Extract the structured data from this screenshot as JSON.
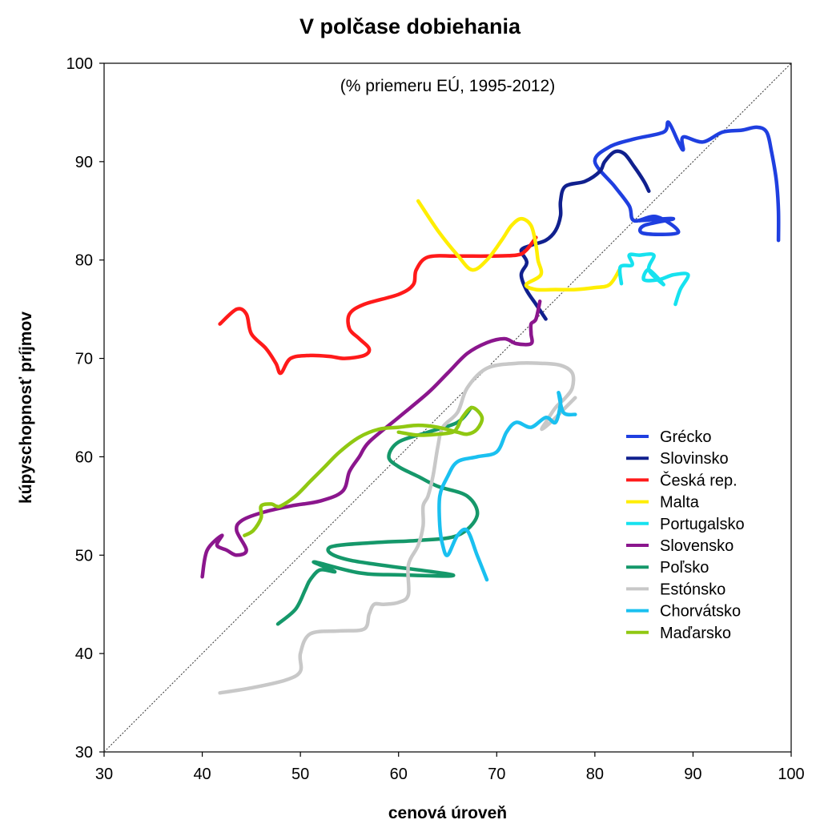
{
  "chart_data": {
    "type": "line",
    "title": "V polčase dobiehania",
    "subtitle": "(% priemeru EÚ, 1995-2012)",
    "xlabel": "cenová úroveň",
    "ylabel": "kúpyschopnosť príjmov",
    "xlim": [
      30,
      100
    ],
    "ylim": [
      30,
      100
    ],
    "xticks": [
      30,
      40,
      50,
      60,
      70,
      80,
      90,
      100
    ],
    "yticks": [
      30,
      40,
      50,
      60,
      70,
      80,
      90,
      100
    ],
    "grid": false,
    "reference_line": "diagonal y = x (dotted)",
    "legend_position": "right",
    "series": [
      {
        "name": "Grécko",
        "color": "#1f3fe0",
        "points": [
          [
            84.5,
            84
          ],
          [
            88,
            84.2
          ],
          [
            85,
            83.5
          ],
          [
            85,
            82.7
          ],
          [
            88.5,
            82.8
          ],
          [
            86.3,
            84.4
          ],
          [
            84,
            84
          ],
          [
            83.5,
            85.5
          ],
          [
            82,
            87.5
          ],
          [
            80,
            90
          ],
          [
            81.5,
            91.5
          ],
          [
            84,
            92.3
          ],
          [
            87,
            93
          ],
          [
            87.5,
            94
          ],
          [
            88.5,
            92
          ],
          [
            89,
            91.2
          ],
          [
            89,
            92.5
          ],
          [
            91,
            92
          ],
          [
            93,
            93
          ],
          [
            95,
            93.2
          ],
          [
            96.5,
            93.5
          ],
          [
            97.5,
            93
          ],
          [
            98,
            91
          ],
          [
            98.5,
            88
          ],
          [
            98.7,
            85
          ],
          [
            98.7,
            82
          ]
        ]
      },
      {
        "name": "Slovinsko",
        "color": "#10208e",
        "points": [
          [
            75,
            74
          ],
          [
            74,
            75.5
          ],
          [
            73,
            77
          ],
          [
            72.5,
            78.5
          ],
          [
            73,
            79.5
          ],
          [
            73,
            80
          ],
          [
            72.5,
            81
          ],
          [
            73.5,
            81.5
          ],
          [
            75,
            82
          ],
          [
            76,
            83
          ],
          [
            76.5,
            84.5
          ],
          [
            76.5,
            86
          ],
          [
            77,
            87.5
          ],
          [
            79,
            88
          ],
          [
            80.5,
            89
          ],
          [
            81,
            90
          ],
          [
            82,
            91
          ],
          [
            83,
            90.8
          ],
          [
            84,
            89.5
          ],
          [
            85,
            88
          ],
          [
            85.5,
            87
          ]
        ]
      },
      {
        "name": "Česká rep.",
        "color": "#ff1a1a",
        "points": [
          [
            41.8,
            73.5
          ],
          [
            43.5,
            75
          ],
          [
            44.5,
            74.5
          ],
          [
            45,
            72.5
          ],
          [
            46.5,
            71
          ],
          [
            47.5,
            69.5
          ],
          [
            48,
            68.5
          ],
          [
            49,
            70
          ],
          [
            51,
            70.3
          ],
          [
            53,
            70.2
          ],
          [
            54.5,
            70
          ],
          [
            56.5,
            70.3
          ],
          [
            57,
            71
          ],
          [
            56,
            72
          ],
          [
            55,
            73
          ],
          [
            55,
            74.5
          ],
          [
            56.5,
            75.5
          ],
          [
            60,
            76.5
          ],
          [
            61.5,
            77.5
          ],
          [
            61.8,
            79
          ],
          [
            63,
            80.3
          ],
          [
            66,
            80.4
          ],
          [
            69,
            80.4
          ],
          [
            72,
            80.5
          ],
          [
            73,
            81
          ],
          [
            74,
            82.3
          ]
        ]
      },
      {
        "name": "Malta",
        "color": "#ffee00",
        "points": [
          [
            62,
            86
          ],
          [
            64,
            83
          ],
          [
            66,
            80.5
          ],
          [
            67.5,
            79
          ],
          [
            69,
            80
          ],
          [
            70.5,
            82
          ],
          [
            71.5,
            83.5
          ],
          [
            72.5,
            84.2
          ],
          [
            73.5,
            83.5
          ],
          [
            74,
            81.5
          ],
          [
            74.2,
            80
          ],
          [
            74.5,
            78.5
          ],
          [
            73,
            77.5
          ],
          [
            74,
            77
          ],
          [
            76,
            77
          ],
          [
            78,
            77
          ],
          [
            80,
            77.2
          ],
          [
            81.5,
            77.5
          ],
          [
            82.5,
            79
          ]
        ]
      },
      {
        "name": "Portugalsko",
        "color": "#16e2ef",
        "points": [
          [
            82.7,
            77.6
          ],
          [
            82.6,
            79.3
          ],
          [
            83.8,
            79.5
          ],
          [
            83.5,
            80.5
          ],
          [
            84.5,
            80.5
          ],
          [
            86,
            80.5
          ],
          [
            85.5,
            79
          ],
          [
            87,
            77.5
          ],
          [
            85.5,
            79
          ],
          [
            85,
            78
          ],
          [
            86.5,
            78
          ],
          [
            88,
            78.5
          ],
          [
            89.5,
            78.5
          ],
          [
            88.7,
            77
          ],
          [
            88.2,
            75.5
          ]
        ]
      },
      {
        "name": "Slovensko",
        "color": "#8b168d",
        "points": [
          [
            40,
            47.8
          ],
          [
            40.5,
            50.5
          ],
          [
            42,
            52
          ],
          [
            41.5,
            51
          ],
          [
            42.5,
            50.5
          ],
          [
            43.5,
            50
          ],
          [
            44.5,
            50.5
          ],
          [
            43.5,
            52.5
          ],
          [
            44,
            53.5
          ],
          [
            46,
            54.3
          ],
          [
            49,
            55
          ],
          [
            52,
            55.5
          ],
          [
            54.3,
            56.5
          ],
          [
            55,
            58.5
          ],
          [
            56,
            60
          ],
          [
            57,
            61.5
          ],
          [
            60,
            64
          ],
          [
            63,
            66.5
          ],
          [
            65,
            68.5
          ],
          [
            67,
            70.5
          ],
          [
            69,
            71.6
          ],
          [
            70.8,
            72
          ],
          [
            72,
            71.5
          ],
          [
            73.5,
            71.5
          ],
          [
            73.5,
            72.5
          ],
          [
            73.5,
            73.5
          ],
          [
            74,
            74
          ],
          [
            74.4,
            75.8
          ]
        ]
      },
      {
        "name": "Poľsko",
        "color": "#15986a",
        "points": [
          [
            47.7,
            43
          ],
          [
            49.5,
            44.5
          ],
          [
            50.5,
            46.5
          ],
          [
            51,
            47.5
          ],
          [
            52,
            48.5
          ],
          [
            53.5,
            48.3
          ],
          [
            52.5,
            48.8
          ],
          [
            51.5,
            49.3
          ],
          [
            56,
            48.2
          ],
          [
            60,
            48
          ],
          [
            65.5,
            48
          ],
          [
            55,
            49.5
          ],
          [
            53,
            50.8
          ],
          [
            58,
            51.3
          ],
          [
            62,
            51.5
          ],
          [
            66,
            52
          ],
          [
            68,
            54
          ],
          [
            67,
            56
          ],
          [
            64,
            57
          ],
          [
            62,
            58
          ],
          [
            60,
            59
          ],
          [
            59,
            60
          ],
          [
            60,
            61.5
          ],
          [
            63,
            62.5
          ],
          [
            66,
            63.5
          ],
          [
            67.4,
            65
          ]
        ]
      },
      {
        "name": "Estónsko",
        "color": "#c8c8c8",
        "points": [
          [
            41.8,
            36
          ],
          [
            45,
            36.5
          ],
          [
            48.5,
            37.3
          ],
          [
            50,
            38.2
          ],
          [
            50,
            40
          ],
          [
            51,
            42
          ],
          [
            54,
            42.3
          ],
          [
            56.5,
            42.5
          ],
          [
            57,
            44
          ],
          [
            57.5,
            45
          ],
          [
            58.5,
            45
          ],
          [
            60,
            45.2
          ],
          [
            61,
            46
          ],
          [
            61,
            49
          ],
          [
            62,
            51
          ],
          [
            62.5,
            53
          ],
          [
            62.5,
            55
          ],
          [
            63,
            56
          ],
          [
            63.5,
            58
          ],
          [
            64,
            61
          ],
          [
            64.5,
            63
          ],
          [
            66,
            64.5
          ],
          [
            67,
            67
          ],
          [
            69,
            69
          ],
          [
            72,
            69.5
          ],
          [
            74.5,
            69.5
          ],
          [
            76.5,
            69.3
          ],
          [
            77.7,
            68.5
          ],
          [
            77.7,
            67
          ],
          [
            77,
            66
          ],
          [
            76,
            65
          ],
          [
            75,
            63.5
          ],
          [
            74.6,
            62.8
          ],
          [
            75.5,
            63.5
          ],
          [
            77,
            65
          ],
          [
            78,
            66
          ]
        ]
      },
      {
        "name": "Chorvátsko",
        "color": "#1ac0f0",
        "points": [
          [
            69,
            47.5
          ],
          [
            68,
            50
          ],
          [
            67,
            52.5
          ],
          [
            66,
            52
          ],
          [
            65,
            50
          ],
          [
            64.5,
            51
          ],
          [
            64.2,
            53
          ],
          [
            64.2,
            56
          ],
          [
            65,
            58
          ],
          [
            66,
            59.5
          ],
          [
            68,
            60
          ],
          [
            70,
            60.5
          ],
          [
            71,
            62.5
          ],
          [
            72,
            63.5
          ],
          [
            73.5,
            63
          ],
          [
            75,
            64
          ],
          [
            76,
            63.5
          ],
          [
            76.5,
            65.5
          ],
          [
            76.3,
            66.5
          ],
          [
            76.8,
            64.5
          ],
          [
            78,
            64.3
          ]
        ]
      },
      {
        "name": "Maďarsko",
        "color": "#90c812",
        "points": [
          [
            44.3,
            52
          ],
          [
            45.2,
            52.5
          ],
          [
            46,
            53.8
          ],
          [
            46,
            55
          ],
          [
            47,
            55.2
          ],
          [
            47.5,
            55
          ],
          [
            48,
            55
          ],
          [
            49.5,
            56
          ],
          [
            51,
            57.5
          ],
          [
            52.5,
            59
          ],
          [
            54,
            60.5
          ],
          [
            56,
            62
          ],
          [
            58,
            62.8
          ],
          [
            60,
            63
          ],
          [
            62,
            63.2
          ],
          [
            64,
            63
          ],
          [
            66,
            62.5
          ],
          [
            67,
            62.3
          ],
          [
            68,
            62.8
          ],
          [
            68.5,
            64
          ],
          [
            67.5,
            65
          ],
          [
            66.5,
            64
          ],
          [
            66,
            63
          ],
          [
            65.5,
            62.5
          ],
          [
            64,
            62.3
          ],
          [
            62,
            62.2
          ],
          [
            60,
            62.5
          ]
        ]
      }
    ]
  }
}
